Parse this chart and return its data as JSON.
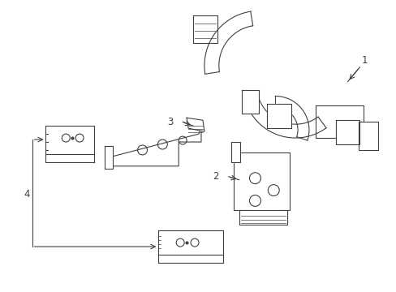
{
  "bg_color": "#ffffff",
  "line_color": "#404040",
  "line_width": 0.8,
  "fig_width": 4.89,
  "fig_height": 3.6,
  "dpi": 100,
  "label_fontsize": 8.5
}
